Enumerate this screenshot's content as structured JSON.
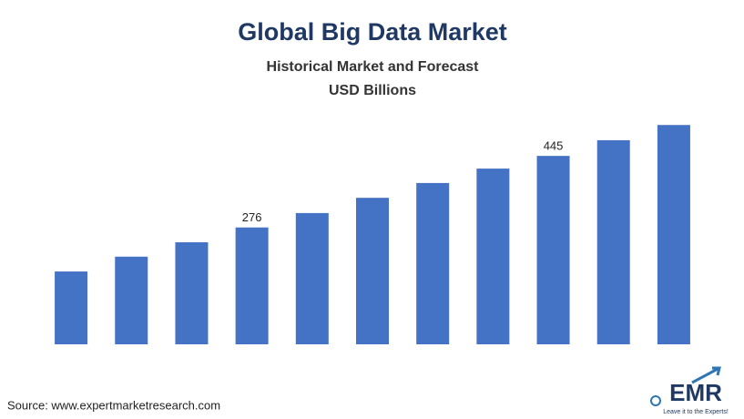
{
  "chart_data": {
    "type": "bar",
    "title": "Global Big Data Market",
    "subtitle": [
      "Historical Market and Forecast",
      "USD Billions"
    ],
    "values": [
      172,
      207,
      241,
      276,
      310,
      346,
      381,
      415,
      445,
      482,
      518
    ],
    "value_labels": [
      null,
      null,
      null,
      "276",
      null,
      null,
      null,
      null,
      "445",
      null,
      null
    ],
    "color": "#4472c4",
    "ylim": [
      0,
      540
    ]
  },
  "footer": {
    "source": "Source: www.expertmarketresearch.com",
    "logo": "EMR",
    "tagline": "Leave it to the Experts!"
  }
}
